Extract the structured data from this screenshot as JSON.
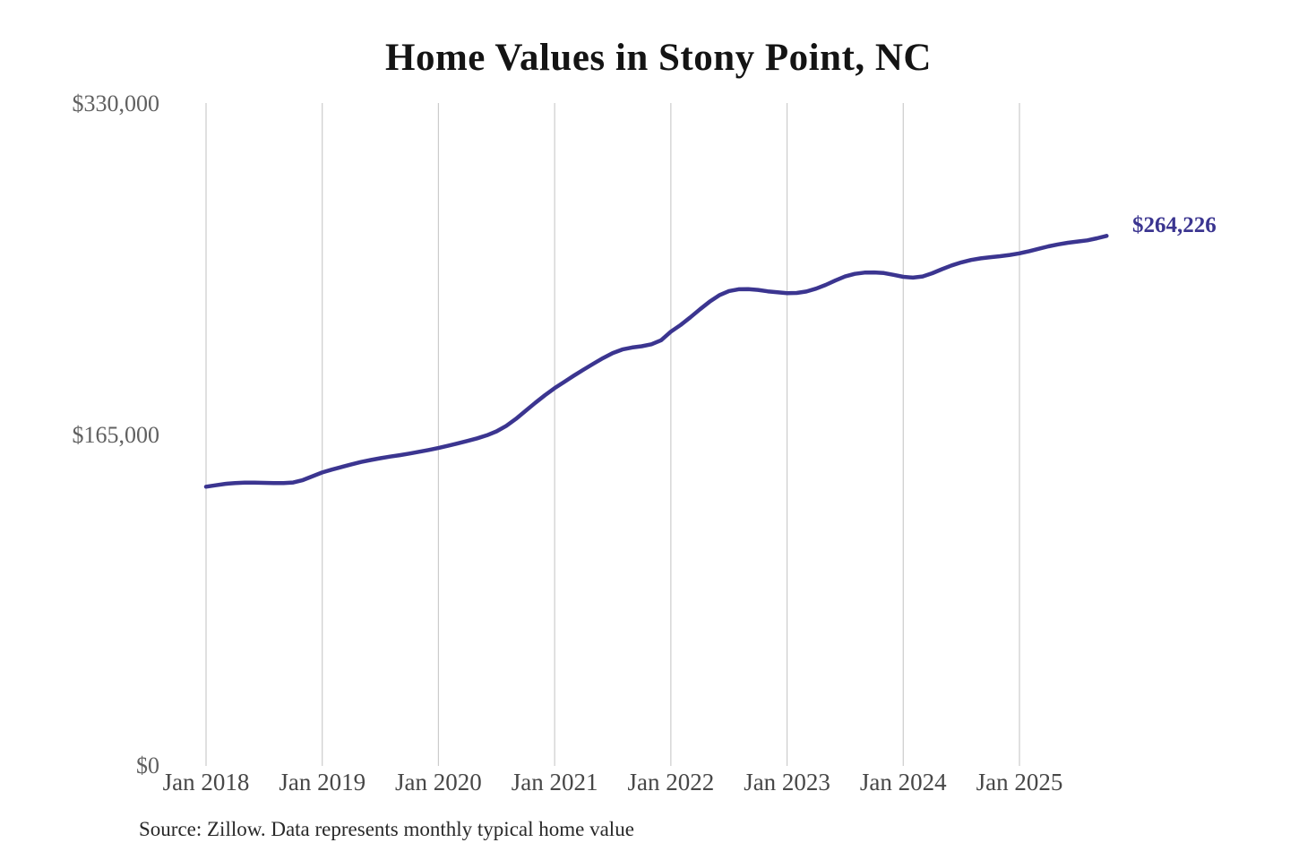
{
  "title": "Home Values in Stony Point, NC",
  "source_note": "Source: Zillow. Data represents monthly typical home value",
  "end_label": "$264,226",
  "colors": {
    "line": "#3b3590",
    "end_label": "#3b3590",
    "grid": "#cccccc",
    "y_axis_text": "#606060",
    "x_axis_text": "#474747",
    "title_text": "#141414",
    "source_text": "#282828"
  },
  "chart_data": {
    "type": "line",
    "title": "Home Values in Stony Point, NC",
    "xlabel": "",
    "ylabel": "",
    "unit": "USD",
    "grid": "vertical-only",
    "legend": false,
    "ylim": [
      0,
      330000
    ],
    "y_ticks": [
      {
        "value": 0,
        "label": "$0"
      },
      {
        "value": 165000,
        "label": "$165,000"
      },
      {
        "value": 330000,
        "label": "$330,000"
      }
    ],
    "x_tick_labels": [
      "Jan 2018",
      "Jan 2019",
      "Jan 2020",
      "Jan 2021",
      "Jan 2022",
      "Jan 2023",
      "Jan 2024",
      "Jan 2025"
    ],
    "series": [
      {
        "name": "Monthly typical home value",
        "start_month": "Jan 2018",
        "end_month": "Oct 2025",
        "frequency": "monthly",
        "values": [
          139200,
          139900,
          140600,
          141000,
          141200,
          141200,
          141100,
          141000,
          141000,
          141300,
          142500,
          144400,
          146300,
          147700,
          149000,
          150300,
          151500,
          152500,
          153400,
          154200,
          154900,
          155700,
          156600,
          157500,
          158500,
          159600,
          160800,
          162000,
          163300,
          164800,
          166800,
          169500,
          173000,
          177000,
          181000,
          184800,
          188300,
          191500,
          194600,
          197600,
          200500,
          203300,
          205800,
          207600,
          208600,
          209200,
          210200,
          212200,
          216500,
          219800,
          223600,
          227600,
          231400,
          234600,
          236700,
          237600,
          237700,
          237300,
          236600,
          236100,
          235700,
          235800,
          236500,
          237900,
          239800,
          242000,
          244000,
          245300,
          245900,
          246000,
          245700,
          244800,
          243800,
          243400,
          244000,
          245600,
          247600,
          249500,
          251000,
          252200,
          253000,
          253600,
          254100,
          254700,
          255500,
          256600,
          257800,
          259000,
          260000,
          260800,
          261400,
          262000,
          263000,
          264226
        ]
      }
    ],
    "last_value": 264226,
    "last_value_label": "$264,226"
  }
}
